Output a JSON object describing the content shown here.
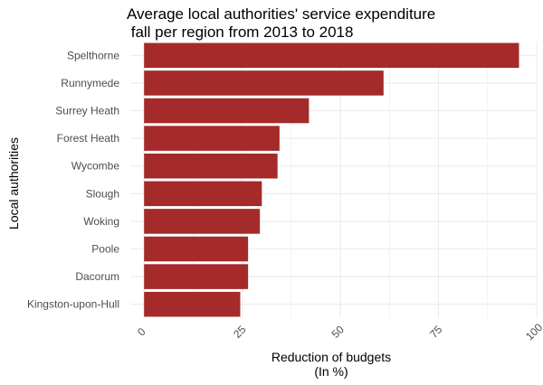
{
  "chart_data": {
    "type": "bar",
    "orientation": "horizontal",
    "title_line1": "Average local authorities' service expenditure",
    "title_line2": " fall per region from 2013 to 2018",
    "xlabel_line1": "Reduction of budgets",
    "xlabel_line2": "(In %)",
    "ylabel": "Local authorities",
    "categories": [
      "Spelthorne",
      "Runnymede",
      "Surrey Heath",
      "Forest Heath",
      "Wycombe",
      "Slough",
      "Woking",
      "Poole",
      "Dacorum",
      "Kingston-upon-Hull"
    ],
    "values": [
      95.5,
      61,
      42,
      34.5,
      34,
      30,
      29.5,
      26.5,
      26.5,
      24.5
    ],
    "xlim": [
      -3.5,
      100
    ],
    "xticks": [
      0,
      25,
      50,
      75,
      100
    ],
    "grid": true,
    "bar_color": "#a52a2a",
    "grid_color": "#ebebeb"
  }
}
